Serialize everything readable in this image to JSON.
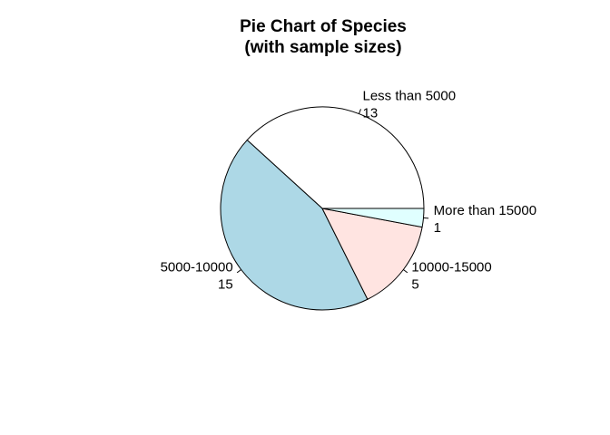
{
  "chart_data": {
    "type": "pie",
    "title_lines": [
      "Pie Chart of Species",
      "(with sample sizes)"
    ],
    "categories": [
      "Less than 5000",
      "5000-10000",
      "10000-15000",
      "More than 15000"
    ],
    "values": [
      13,
      15,
      5,
      1
    ],
    "colors": [
      "#ffffff",
      "#add8e6",
      "#ffe4e1",
      "#e0ffff"
    ],
    "start_angle_deg": 0,
    "direction": "counterclockwise",
    "border_color": "#000000",
    "legend": "none"
  }
}
